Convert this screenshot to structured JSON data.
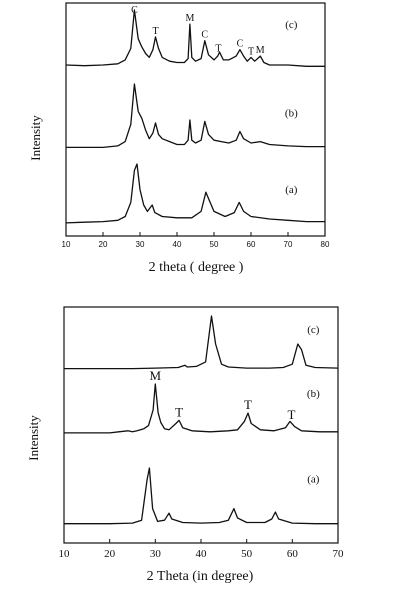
{
  "chart_data": [
    {
      "type": "line",
      "xlabel": "2 theta ( degree )",
      "ylabel": "Intensity",
      "xlim": [
        10,
        80
      ],
      "xticks": [
        10,
        20,
        30,
        40,
        50,
        60,
        70,
        80
      ],
      "grid": false,
      "series": [
        {
          "name": "(c)",
          "points": [
            [
              10,
              0.14
            ],
            [
              15,
              0.13
            ],
            [
              20,
              0.14
            ],
            [
              24,
              0.16
            ],
            [
              26,
              0.22
            ],
            [
              27.5,
              0.4
            ],
            [
              28.5,
              1.0
            ],
            [
              29.5,
              0.55
            ],
            [
              30.5,
              0.42
            ],
            [
              31.5,
              0.32
            ],
            [
              32.5,
              0.26
            ],
            [
              33.5,
              0.38
            ],
            [
              34.2,
              0.58
            ],
            [
              35,
              0.4
            ],
            [
              36,
              0.26
            ],
            [
              38,
              0.2
            ],
            [
              40,
              0.18
            ],
            [
              42,
              0.18
            ],
            [
              43,
              0.24
            ],
            [
              43.5,
              0.78
            ],
            [
              44,
              0.26
            ],
            [
              45,
              0.2
            ],
            [
              46.5,
              0.24
            ],
            [
              47.5,
              0.52
            ],
            [
              48.5,
              0.3
            ],
            [
              50,
              0.22
            ],
            [
              51,
              0.28
            ],
            [
              51.5,
              0.34
            ],
            [
              52.5,
              0.22
            ],
            [
              54,
              0.22
            ],
            [
              56,
              0.28
            ],
            [
              57,
              0.38
            ],
            [
              58,
              0.28
            ],
            [
              59,
              0.2
            ],
            [
              60,
              0.26
            ],
            [
              61,
              0.2
            ],
            [
              62.5,
              0.28
            ],
            [
              63.5,
              0.18
            ],
            [
              65,
              0.14
            ],
            [
              70,
              0.14
            ],
            [
              75,
              0.12
            ],
            [
              80,
              0.12
            ]
          ]
        },
        {
          "name": "(b)",
          "points": [
            [
              10,
              0.12
            ],
            [
              15,
              0.12
            ],
            [
              20,
              0.12
            ],
            [
              24,
              0.14
            ],
            [
              26,
              0.2
            ],
            [
              27.5,
              0.44
            ],
            [
              28.5,
              1.0
            ],
            [
              29.5,
              0.62
            ],
            [
              30.5,
              0.52
            ],
            [
              31.5,
              0.36
            ],
            [
              32.5,
              0.24
            ],
            [
              33.5,
              0.32
            ],
            [
              34.2,
              0.46
            ],
            [
              35,
              0.3
            ],
            [
              36,
              0.24
            ],
            [
              38,
              0.2
            ],
            [
              40,
              0.16
            ],
            [
              42,
              0.16
            ],
            [
              43,
              0.22
            ],
            [
              43.5,
              0.5
            ],
            [
              44,
              0.22
            ],
            [
              45,
              0.18
            ],
            [
              46.5,
              0.22
            ],
            [
              47.5,
              0.48
            ],
            [
              48.5,
              0.3
            ],
            [
              50,
              0.22
            ],
            [
              52,
              0.2
            ],
            [
              54,
              0.18
            ],
            [
              56,
              0.22
            ],
            [
              57,
              0.34
            ],
            [
              58,
              0.24
            ],
            [
              60,
              0.18
            ],
            [
              62.5,
              0.2
            ],
            [
              65,
              0.16
            ],
            [
              70,
              0.14
            ],
            [
              75,
              0.13
            ],
            [
              80,
              0.13
            ]
          ]
        },
        {
          "name": "(a)",
          "points": [
            [
              10,
              0.08
            ],
            [
              15,
              0.09
            ],
            [
              20,
              0.1
            ],
            [
              24,
              0.12
            ],
            [
              26,
              0.18
            ],
            [
              27.5,
              0.4
            ],
            [
              28.5,
              0.9
            ],
            [
              29.2,
              1.0
            ],
            [
              30,
              0.6
            ],
            [
              31,
              0.36
            ],
            [
              32,
              0.26
            ],
            [
              33.3,
              0.36
            ],
            [
              34,
              0.24
            ],
            [
              36,
              0.18
            ],
            [
              40,
              0.16
            ],
            [
              44,
              0.16
            ],
            [
              46.5,
              0.26
            ],
            [
              47.8,
              0.56
            ],
            [
              48.8,
              0.42
            ],
            [
              50,
              0.26
            ],
            [
              53,
              0.18
            ],
            [
              55.5,
              0.24
            ],
            [
              56.8,
              0.4
            ],
            [
              58,
              0.26
            ],
            [
              60,
              0.18
            ],
            [
              65,
              0.14
            ],
            [
              70,
              0.12
            ],
            [
              75,
              0.1
            ],
            [
              80,
              0.1
            ]
          ]
        }
      ],
      "annotations": [
        {
          "text": "C",
          "x": 28.5
        },
        {
          "text": "T",
          "x": 34.2
        },
        {
          "text": "M",
          "x": 43.5
        },
        {
          "text": "C",
          "x": 47.5
        },
        {
          "text": "T",
          "x": 51.2
        },
        {
          "text": "C",
          "x": 57
        },
        {
          "text": "T",
          "x": 60
        },
        {
          "text": "M",
          "x": 62.5
        }
      ]
    },
    {
      "type": "line",
      "xlabel": "2 Theta (in degree)",
      "ylabel": "Intensity",
      "xlim": [
        10,
        70
      ],
      "xticks": [
        10,
        20,
        30,
        40,
        50,
        60,
        70
      ],
      "grid": false,
      "series": [
        {
          "name": "(c)",
          "points": [
            [
              10,
              0.06
            ],
            [
              15,
              0.06
            ],
            [
              20,
              0.06
            ],
            [
              25,
              0.06
            ],
            [
              30,
              0.07
            ],
            [
              35,
              0.08
            ],
            [
              36.5,
              0.12
            ],
            [
              37,
              0.09
            ],
            [
              39,
              0.1
            ],
            [
              41,
              0.18
            ],
            [
              42.3,
              1.0
            ],
            [
              43.2,
              0.5
            ],
            [
              44.5,
              0.14
            ],
            [
              46,
              0.09
            ],
            [
              50,
              0.07
            ],
            [
              55,
              0.07
            ],
            [
              58,
              0.08
            ],
            [
              60,
              0.14
            ],
            [
              61.2,
              0.5
            ],
            [
              62,
              0.4
            ],
            [
              63,
              0.12
            ],
            [
              65,
              0.08
            ],
            [
              70,
              0.07
            ]
          ]
        },
        {
          "name": "(b)",
          "points": [
            [
              10,
              0.06
            ],
            [
              15,
              0.06
            ],
            [
              20,
              0.06
            ],
            [
              22,
              0.08
            ],
            [
              24,
              0.1
            ],
            [
              25,
              0.08
            ],
            [
              26,
              0.1
            ],
            [
              27.5,
              0.14
            ],
            [
              28.5,
              0.2
            ],
            [
              29.5,
              0.5
            ],
            [
              30,
              1.0
            ],
            [
              30.6,
              0.45
            ],
            [
              31.2,
              0.26
            ],
            [
              32,
              0.14
            ],
            [
              33,
              0.12
            ],
            [
              34.5,
              0.24
            ],
            [
              35.2,
              0.3
            ],
            [
              36,
              0.16
            ],
            [
              38,
              0.1
            ],
            [
              42,
              0.08
            ],
            [
              46,
              0.1
            ],
            [
              48,
              0.12
            ],
            [
              49.5,
              0.28
            ],
            [
              50.3,
              0.44
            ],
            [
              51,
              0.24
            ],
            [
              53,
              0.12
            ],
            [
              56,
              0.1
            ],
            [
              58.5,
              0.16
            ],
            [
              59.5,
              0.28
            ],
            [
              60.5,
              0.18
            ],
            [
              62,
              0.1
            ],
            [
              66,
              0.08
            ],
            [
              70,
              0.08
            ]
          ]
        },
        {
          "name": "(a)",
          "points": [
            [
              10,
              0.04
            ],
            [
              15,
              0.04
            ],
            [
              20,
              0.04
            ],
            [
              25,
              0.05
            ],
            [
              27,
              0.1
            ],
            [
              28.2,
              0.8
            ],
            [
              28.7,
              1.0
            ],
            [
              29.4,
              0.3
            ],
            [
              30.5,
              0.08
            ],
            [
              32,
              0.1
            ],
            [
              33,
              0.22
            ],
            [
              33.6,
              0.12
            ],
            [
              36,
              0.06
            ],
            [
              40,
              0.05
            ],
            [
              44,
              0.06
            ],
            [
              46,
              0.1
            ],
            [
              47.2,
              0.3
            ],
            [
              48,
              0.14
            ],
            [
              50,
              0.06
            ],
            [
              54,
              0.06
            ],
            [
              55.5,
              0.12
            ],
            [
              56.3,
              0.24
            ],
            [
              57,
              0.12
            ],
            [
              60,
              0.05
            ],
            [
              65,
              0.04
            ],
            [
              70,
              0.04
            ]
          ]
        }
      ],
      "annotations": [
        {
          "text": "M",
          "x": 30
        },
        {
          "text": "T",
          "x": 35.2
        },
        {
          "text": "T",
          "x": 50.3
        },
        {
          "text": "T",
          "x": 59.8
        }
      ]
    }
  ]
}
